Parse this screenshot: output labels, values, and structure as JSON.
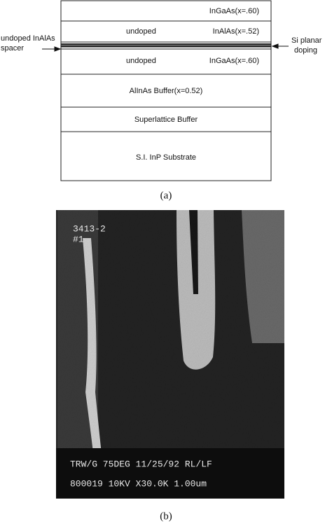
{
  "figure_a": {
    "layers": [
      {
        "right": "InGaAs(x=.60)"
      },
      {
        "left": "undoped",
        "right": "InAlAs(x=.52)"
      },
      {
        "left": "undoped",
        "right": "InGaAs(x=.60)"
      },
      {
        "center": "AlInAs Buffer(x=0.52)"
      },
      {
        "center": "Superlattice Buffer"
      },
      {
        "center": "S.I. InP Substrate"
      }
    ],
    "left_annotation": [
      "undoped InAlAs",
      "spacer"
    ],
    "right_annotation": [
      "Si planar",
      "doping"
    ],
    "caption": "(a)"
  },
  "figure_b": {
    "overlay_top": [
      "3413-2",
      "#1"
    ],
    "overlay_bottom": [
      "TRW/G 75DEG 11/25/92 RL/LF",
      "800019 10KV X30.0K 1.00um"
    ],
    "caption": "(b)"
  }
}
